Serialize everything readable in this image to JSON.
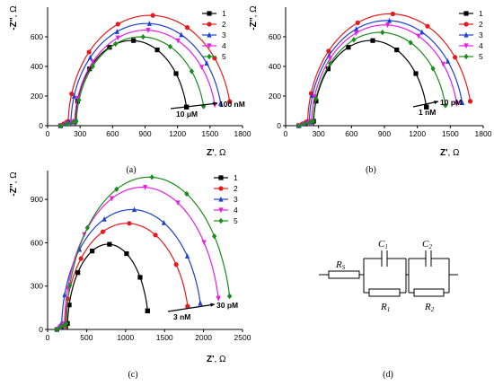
{
  "chart_data": [
    {
      "type": "scatter",
      "panel": "a",
      "caption": "(a)",
      "xlabel_main": "Z'",
      "xlabel_unit": ", Ω",
      "ylabel_main": "-Z''",
      "ylabel_unit": ", Ω",
      "xlim": [
        0,
        1800
      ],
      "ylim": [
        0,
        800
      ],
      "xticks": [
        0,
        300,
        600,
        900,
        1200,
        1500,
        1800
      ],
      "yticks": [
        0,
        200,
        400,
        600
      ],
      "legend_position": "top-right",
      "annotations": [
        {
          "text": "100 nM"
        },
        {
          "text": "10 μM"
        }
      ],
      "series": [
        {
          "name": "1",
          "color": "#000000",
          "marker": "square",
          "center": 775,
          "radius": 520,
          "height": 575,
          "start": 255
        },
        {
          "name": "2",
          "color": "#e41a1c",
          "marker": "circle",
          "center": 945,
          "radius": 755,
          "height": 745,
          "start": 190
        },
        {
          "name": "3",
          "color": "#1f3fd1",
          "marker": "triangle-up",
          "center": 915,
          "radius": 700,
          "height": 690,
          "start": 215
        },
        {
          "name": "4",
          "color": "#e81ee0",
          "marker": "triangle-down",
          "center": 905,
          "radius": 655,
          "height": 645,
          "start": 250
        },
        {
          "name": "5",
          "color": "#1c8a1c",
          "marker": "diamond",
          "center": 860,
          "radius": 595,
          "height": 600,
          "start": 265
        }
      ]
    },
    {
      "type": "scatter",
      "panel": "b",
      "caption": "(b)",
      "xlabel_main": "Z'",
      "xlabel_unit": ", Ω",
      "ylabel_main": "-Z''",
      "ylabel_unit": ", Ω",
      "xlim": [
        0,
        1800
      ],
      "ylim": [
        0,
        800
      ],
      "xticks": [
        0,
        300,
        600,
        900,
        1200,
        1500,
        1800
      ],
      "yticks": [
        0,
        200,
        400,
        600
      ],
      "legend_position": "top-right",
      "annotations": [
        {
          "text": "10 pM"
        },
        {
          "text": "1 nM"
        }
      ],
      "series": [
        {
          "name": "1",
          "color": "#000000",
          "marker": "square",
          "center": 775,
          "radius": 520,
          "height": 575,
          "start": 255
        },
        {
          "name": "2",
          "color": "#e41a1c",
          "marker": "circle",
          "center": 950,
          "radius": 750,
          "height": 755,
          "start": 200
        },
        {
          "name": "3",
          "color": "#1f3fd1",
          "marker": "triangle-up",
          "center": 920,
          "radius": 705,
          "height": 710,
          "start": 215
        },
        {
          "name": "4",
          "color": "#e81ee0",
          "marker": "triangle-down",
          "center": 905,
          "radius": 670,
          "height": 680,
          "start": 235
        },
        {
          "name": "5",
          "color": "#1c8a1c",
          "marker": "diamond",
          "center": 860,
          "radius": 610,
          "height": 630,
          "start": 250
        }
      ]
    },
    {
      "type": "scatter",
      "panel": "c",
      "caption": "(c)",
      "xlabel_main": "Z'",
      "xlabel_unit": ", Ω",
      "ylabel_main": "-Z''",
      "ylabel_unit": ", Ω",
      "xlim": [
        0,
        2500
      ],
      "ylim": [
        0,
        1100
      ],
      "xticks": [
        0,
        500,
        1000,
        1500,
        2000,
        2500
      ],
      "yticks": [
        0,
        300,
        600,
        900
      ],
      "legend_position": "top-right",
      "annotations": [
        {
          "text": "30 pM"
        },
        {
          "text": "3 nM"
        }
      ],
      "series": [
        {
          "name": "1",
          "color": "#000000",
          "marker": "square",
          "center": 775,
          "radius": 520,
          "height": 590,
          "start": 255
        },
        {
          "name": "2",
          "color": "#e41a1c",
          "marker": "circle",
          "center": 1020,
          "radius": 795,
          "height": 735,
          "start": 225
        },
        {
          "name": "3",
          "color": "#1f3fd1",
          "marker": "triangle-up",
          "center": 1080,
          "radius": 900,
          "height": 830,
          "start": 180
        },
        {
          "name": "4",
          "color": "#e81ee0",
          "marker": "triangle-down",
          "center": 1215,
          "radius": 1000,
          "height": 985,
          "start": 215
        },
        {
          "name": "5",
          "color": "#1c8a1c",
          "marker": "diamond",
          "center": 1300,
          "radius": 1060,
          "height": 1055,
          "start": 240
        }
      ]
    }
  ],
  "circuit": {
    "caption": "(d)",
    "rs_main": "R",
    "rs_sub": "S",
    "c1_main": "C",
    "c1_sub": "1",
    "r1_main": "R",
    "r1_sub": "1",
    "c2_main": "C",
    "c2_sub": "2",
    "r2_main": "R",
    "r2_sub": "2"
  }
}
